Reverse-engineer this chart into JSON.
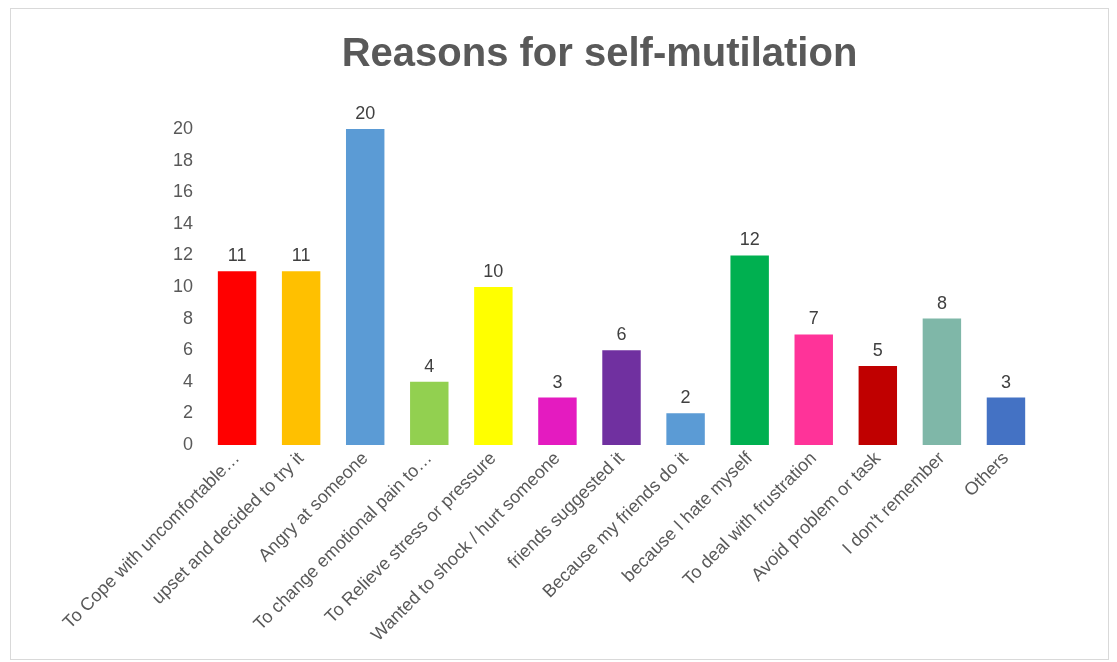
{
  "chart_data": {
    "type": "bar",
    "title": "Reasons for self-mutilation",
    "categories": [
      "To Cope with uncomfortable…",
      "upset and decided to try it",
      "Angry at someone",
      "To change emotional pain to…",
      "To Relieve stress or pressure",
      "Wanted to shock / hurt someone",
      "friends suggested it",
      "Because my friends do it",
      "because I hate myself",
      "To deal with frustration",
      "Avoid problem or task",
      "I don't remember",
      "Others"
    ],
    "values": [
      11,
      11,
      20,
      4,
      10,
      3,
      6,
      2,
      12,
      7,
      5,
      8,
      3
    ],
    "colors": [
      "#ff0000",
      "#ffc000",
      "#5b9bd5",
      "#92d050",
      "#ffff00",
      "#e41bc0",
      "#7030a0",
      "#5b9bd5",
      "#00b050",
      "#ff3399",
      "#c00000",
      "#7fb7a8",
      "#4472c4"
    ],
    "ylim": [
      0,
      20
    ],
    "yticks": [
      0,
      2,
      4,
      6,
      8,
      10,
      12,
      14,
      16,
      18,
      20
    ],
    "grid": false,
    "legend": false,
    "data_labels": true
  }
}
